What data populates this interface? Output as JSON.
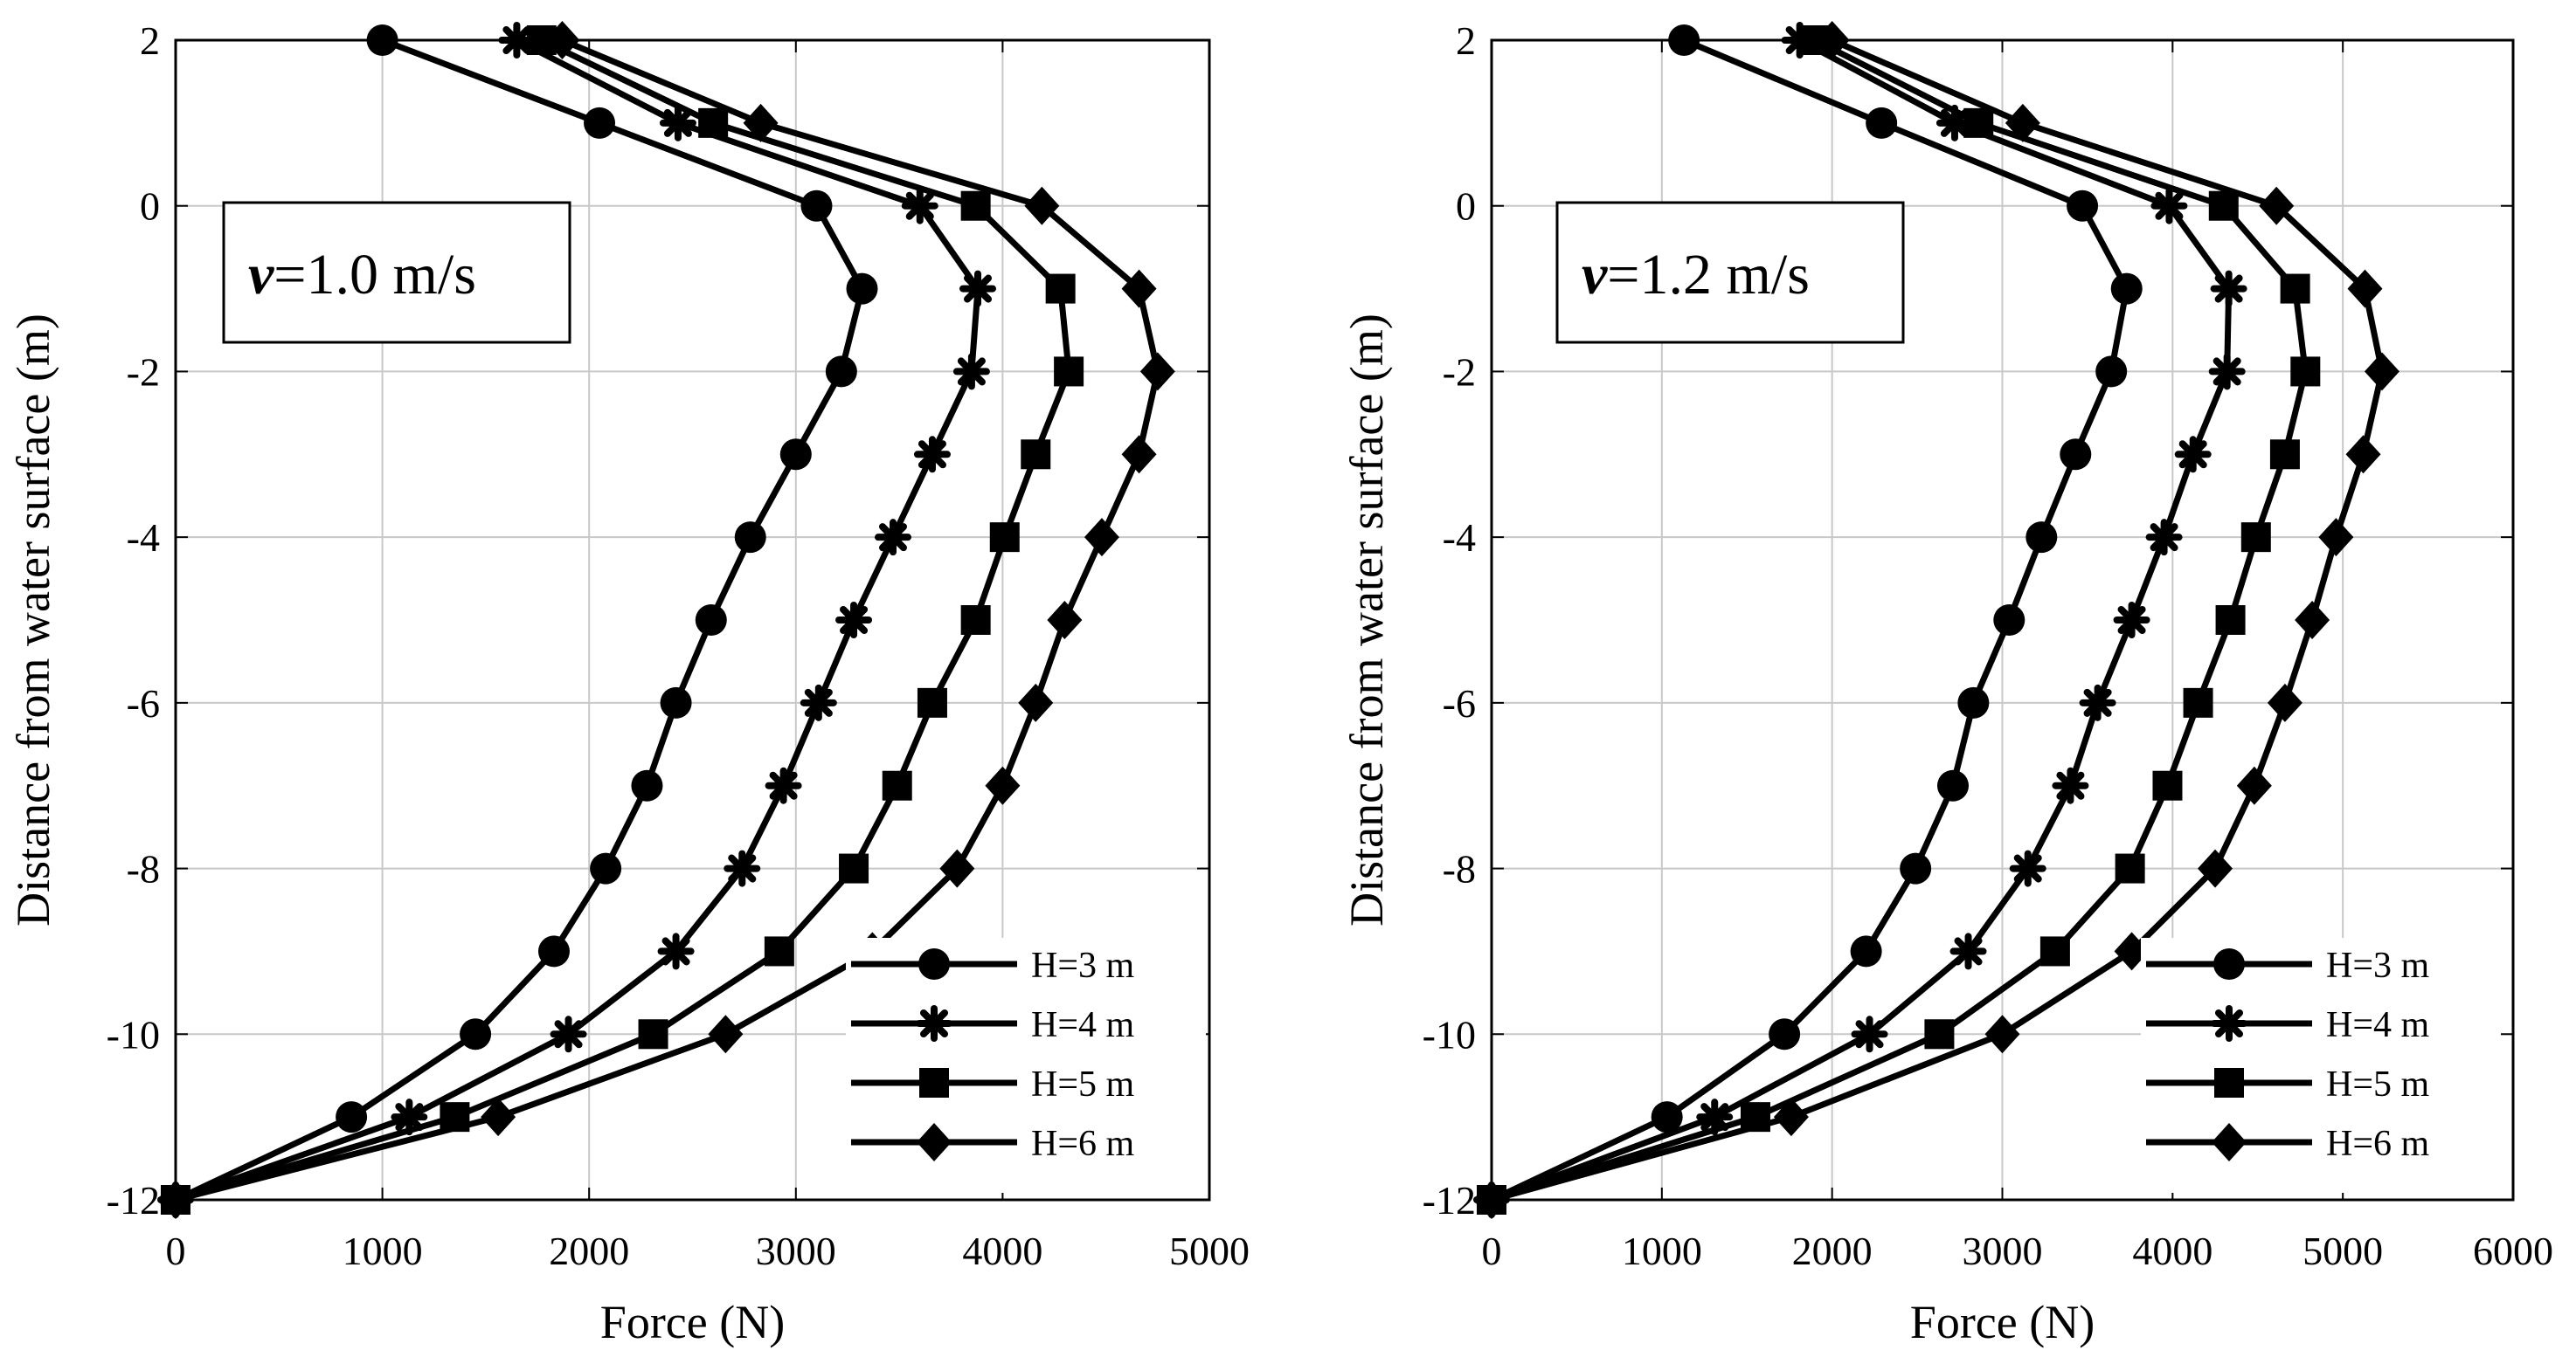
{
  "figure": {
    "description_free": true
  },
  "chart_data": [
    {
      "type": "line",
      "annotation": {
        "symbol": "v",
        "text": "=1.0 m/s"
      },
      "xlabel": "Force (N)",
      "ylabel": "Distance from water surface (m)",
      "xlim": [
        0,
        5000
      ],
      "ylim": [
        -12,
        2
      ],
      "xticks": [
        0,
        1000,
        2000,
        3000,
        4000,
        5000
      ],
      "xtick_labels": [
        "0",
        "1000",
        "2000",
        "3000",
        "4000",
        "5000"
      ],
      "yticks": [
        2,
        0,
        -2,
        -4,
        -6,
        -8,
        -10,
        -12
      ],
      "ytick_labels": [
        "2",
        "0",
        "-2",
        "-4",
        "-6",
        "-8",
        "-10",
        "-12"
      ],
      "grid": true,
      "legend_position": "bottom-right",
      "y": [
        2,
        1,
        0,
        -1,
        -2,
        -3,
        -4,
        -5,
        -6,
        -7,
        -8,
        -9,
        -10,
        -11,
        -12
      ],
      "series": [
        {
          "name": "H=3 m",
          "marker": "circle",
          "x": [
            1000,
            2050,
            3100,
            3320,
            3220,
            3000,
            2780,
            2590,
            2420,
            2280,
            2080,
            1830,
            1450,
            850,
            0
          ]
        },
        {
          "name": "H=4 m",
          "marker": "asterisk",
          "x": [
            1650,
            2430,
            3600,
            3880,
            3850,
            3660,
            3470,
            3280,
            3110,
            2940,
            2740,
            2420,
            1900,
            1130,
            0
          ]
        },
        {
          "name": "H=5 m",
          "marker": "square",
          "x": [
            1770,
            2600,
            3870,
            4280,
            4320,
            4160,
            4010,
            3870,
            3660,
            3490,
            3280,
            2920,
            2310,
            1350,
            0
          ]
        },
        {
          "name": "H=6 m",
          "marker": "diamond",
          "x": [
            1870,
            2830,
            4190,
            4660,
            4750,
            4660,
            4480,
            4300,
            4160,
            4000,
            3780,
            3370,
            2660,
            1560,
            0
          ]
        }
      ]
    },
    {
      "type": "line",
      "annotation": {
        "symbol": "v",
        "text": "=1.2 m/s"
      },
      "xlabel": "Force (N)",
      "ylabel": "Distance from water surface (m)",
      "xlim": [
        0,
        6000
      ],
      "ylim": [
        -12,
        2
      ],
      "xticks": [
        0,
        1000,
        2000,
        3000,
        4000,
        5000,
        6000
      ],
      "xtick_labels": [
        "0",
        "1000",
        "2000",
        "3000",
        "4000",
        "5000",
        "6000"
      ],
      "yticks": [
        2,
        0,
        -2,
        -4,
        -6,
        -8,
        -10,
        -12
      ],
      "ytick_labels": [
        "2",
        "0",
        "-2",
        "-4",
        "-6",
        "-8",
        "-10",
        "-12"
      ],
      "grid": true,
      "legend_position": "bottom-right",
      "y": [
        2,
        1,
        0,
        -1,
        -2,
        -3,
        -4,
        -5,
        -6,
        -7,
        -8,
        -9,
        -10,
        -11,
        -12
      ],
      "series": [
        {
          "name": "H=3 m",
          "marker": "circle",
          "x": [
            1130,
            2290,
            3470,
            3730,
            3640,
            3430,
            3230,
            3040,
            2830,
            2710,
            2490,
            2200,
            1720,
            1030,
            0
          ]
        },
        {
          "name": "H=4 m",
          "marker": "asterisk",
          "x": [
            1810,
            2720,
            3980,
            4330,
            4320,
            4120,
            3950,
            3760,
            3560,
            3400,
            3150,
            2800,
            2220,
            1310,
            0
          ]
        },
        {
          "name": "H=5 m",
          "marker": "square",
          "x": [
            1900,
            2860,
            4300,
            4720,
            4780,
            4660,
            4490,
            4340,
            4150,
            3970,
            3750,
            3310,
            2630,
            1550,
            0
          ]
        },
        {
          "name": "H=6 m",
          "marker": "diamond",
          "x": [
            2000,
            3120,
            4610,
            5130,
            5230,
            5120,
            4960,
            4820,
            4660,
            4480,
            4250,
            3760,
            3000,
            1760,
            0
          ]
        }
      ]
    }
  ]
}
